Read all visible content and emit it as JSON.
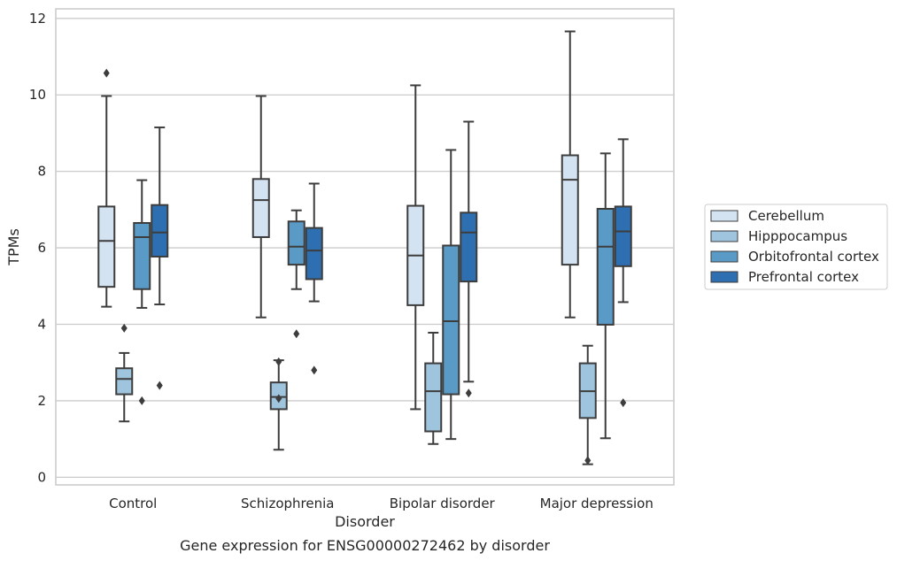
{
  "chart_data": {
    "type": "box",
    "caption": "Gene expression for ENSG00000272462 by disorder",
    "xlabel": "Disorder",
    "ylabel": "TPMs",
    "ylim": [
      -0.2,
      12.25
    ],
    "yticks": [
      0,
      2,
      4,
      6,
      8,
      10,
      12
    ],
    "grid": "horizontal",
    "legend_position": "right",
    "categories": [
      "Control",
      "Schizophrenia",
      "Bipolar disorder",
      "Major depression"
    ],
    "series": [
      {
        "name": "Cerebellum",
        "color": "#d4e3f2",
        "boxes": [
          {
            "q1": 4.98,
            "median": 6.18,
            "q3": 7.08,
            "whisker_low": 4.46,
            "whisker_high": 9.97,
            "outliers": [
              10.57
            ]
          },
          {
            "q1": 6.28,
            "median": 7.25,
            "q3": 7.8,
            "whisker_low": 4.18,
            "whisker_high": 9.97,
            "outliers": []
          },
          {
            "q1": 4.5,
            "median": 5.8,
            "q3": 7.1,
            "whisker_low": 1.78,
            "whisker_high": 10.25,
            "outliers": []
          },
          {
            "q1": 5.56,
            "median": 7.78,
            "q3": 8.42,
            "whisker_low": 4.18,
            "whisker_high": 11.66,
            "outliers": []
          }
        ]
      },
      {
        "name": "Hipppocampus",
        "color": "#9fc4dd",
        "boxes": [
          {
            "q1": 2.17,
            "median": 2.57,
            "q3": 2.85,
            "whisker_low": 1.46,
            "whisker_high": 3.25,
            "outliers": [
              3.9
            ]
          },
          {
            "q1": 1.78,
            "median": 2.1,
            "q3": 2.48,
            "whisker_low": 0.72,
            "whisker_high": 3.06,
            "outliers": [
              3.02,
              2.06
            ]
          },
          {
            "q1": 1.2,
            "median": 2.25,
            "q3": 2.98,
            "whisker_low": 0.87,
            "whisker_high": 3.78,
            "outliers": []
          },
          {
            "q1": 1.55,
            "median": 2.25,
            "q3": 2.98,
            "whisker_low": 0.34,
            "whisker_high": 3.44,
            "outliers": [
              0.44
            ]
          }
        ]
      },
      {
        "name": "Orbitofrontal cortex",
        "color": "#5a9ac6",
        "boxes": [
          {
            "q1": 4.92,
            "median": 6.28,
            "q3": 6.65,
            "whisker_low": 4.43,
            "whisker_high": 7.77,
            "outliers": [
              2.0
            ]
          },
          {
            "q1": 5.56,
            "median": 6.03,
            "q3": 6.69,
            "whisker_low": 4.92,
            "whisker_high": 6.98,
            "outliers": [
              3.75
            ]
          },
          {
            "q1": 2.17,
            "median": 4.08,
            "q3": 6.06,
            "whisker_low": 1.0,
            "whisker_high": 8.56,
            "outliers": []
          },
          {
            "q1": 3.99,
            "median": 6.03,
            "q3": 7.02,
            "whisker_low": 1.02,
            "whisker_high": 8.47,
            "outliers": []
          }
        ]
      },
      {
        "name": "Prefrontal cortex",
        "color": "#2d6fb0",
        "boxes": [
          {
            "q1": 5.77,
            "median": 6.4,
            "q3": 7.12,
            "whisker_low": 4.52,
            "whisker_high": 9.15,
            "outliers": [
              2.4
            ]
          },
          {
            "q1": 5.18,
            "median": 5.93,
            "q3": 6.52,
            "whisker_low": 4.6,
            "whisker_high": 7.68,
            "outliers": [
              2.8
            ]
          },
          {
            "q1": 5.12,
            "median": 6.4,
            "q3": 6.92,
            "whisker_low": 2.5,
            "whisker_high": 9.3,
            "outliers": [
              2.2
            ]
          },
          {
            "q1": 5.52,
            "median": 6.43,
            "q3": 7.08,
            "whisker_low": 4.58,
            "whisker_high": 8.84,
            "outliers": [
              1.95
            ]
          }
        ]
      }
    ]
  }
}
